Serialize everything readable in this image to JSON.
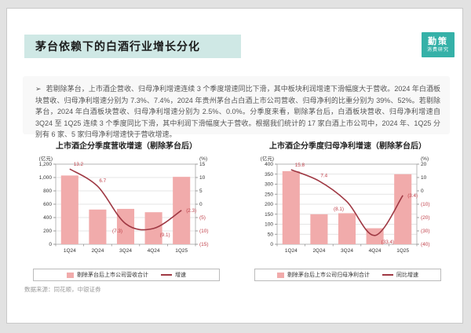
{
  "slide": {
    "title": "茅台依赖下的白酒行业增长分化",
    "logo": {
      "line1": "勤策",
      "line2": "消费研究",
      "color": "#35b1a8"
    },
    "bullet_char": "➢",
    "body_text": "若剔除茅台，上市酒企营收、归母净利增速连续 3 个季度增速同比下滑，其中板块利润增速下滑幅度大于营收。2024 年白酒板块营收、归母净利增速分别为 7.3%、7.4%，2024 年贵州茅台占白酒上市公司营收、归母净利的比重分别为 39%、52%。若剔除茅台，2024 年白酒板块营收、归母净利增速分别为 2.5%、0.0%。分季度来看，剔除茅台后，白酒板块营收、归母净利增速自 3Q24 至 1Q25 连续 3 个季度同比下滑，其中利润下滑幅度大于营收。根据我们统计的 17 家白酒上市公司中，2024 年、1Q25 分别有 6 家、5 家归母净利增速快于营收增速。",
    "source_note": "数据来源：同花顺，中银证券"
  },
  "chart_data": [
    {
      "type": "bar",
      "title": "上市酒企分季度营收增速（剔除茅台后）",
      "categories": [
        "1Q24",
        "2Q24",
        "3Q24",
        "4Q24",
        "1Q25"
      ],
      "left_axis": {
        "label": "(亿元)",
        "ticks": [
          "1,200",
          "1,000",
          "800",
          "600",
          "400",
          "200",
          "0"
        ],
        "min": 0,
        "max": 1200
      },
      "right_axis": {
        "label": "(%)",
        "ticks": [
          "15",
          "10",
          "5",
          "0",
          "(5)",
          "(10)",
          "(15)"
        ],
        "min": -15,
        "max": 15
      },
      "bars": {
        "name": "剔除茅台后上市公司营收合计",
        "values": [
          1030,
          520,
          530,
          480,
          1010
        ],
        "color": "#f1abab"
      },
      "line": {
        "name": "增速",
        "values": [
          13.2,
          6.7,
          -7.3,
          -9.1,
          -2.3
        ],
        "labels": [
          "13.2",
          "6.7",
          "(7.3)",
          "(9.1)",
          "(2.3)"
        ],
        "color": "#9f3843"
      },
      "grid": true,
      "legend_position": "bottom"
    },
    {
      "type": "bar",
      "title": "上市酒企分季度归母净利增速（剔除茅台后）",
      "categories": [
        "1Q24",
        "2Q24",
        "3Q24",
        "4Q24",
        "1Q25"
      ],
      "left_axis": {
        "label": "(亿元)",
        "ticks": [
          "400",
          "350",
          "300",
          "250",
          "200",
          "150",
          "100",
          "50",
          "0"
        ],
        "min": 0,
        "max": 400
      },
      "right_axis": {
        "label": "(%)",
        "ticks": [
          "20",
          "10",
          "0",
          "(10)",
          "(20)",
          "(30)",
          "(40)"
        ],
        "min": -40,
        "max": 20
      },
      "bars": {
        "name": "剔除茅台后上市公司归母净利合计",
        "values": [
          365,
          150,
          155,
          80,
          350
        ],
        "color": "#f1abab"
      },
      "line": {
        "name": "同比增速",
        "values": [
          15.8,
          7.4,
          -8.1,
          -33.4,
          -3.4
        ],
        "labels": [
          "15.8",
          "7.4",
          "(8.1)",
          "(33.4)",
          "(3.4)"
        ],
        "color": "#9f3843"
      },
      "grid": true,
      "legend_position": "bottom"
    }
  ],
  "colors": {
    "accent_teal": "#35b1a8",
    "title_bg": "#cfe8e5",
    "bar_pink": "#f1abab",
    "line_red": "#9f3843",
    "negative_label_red": "#c0404a"
  }
}
